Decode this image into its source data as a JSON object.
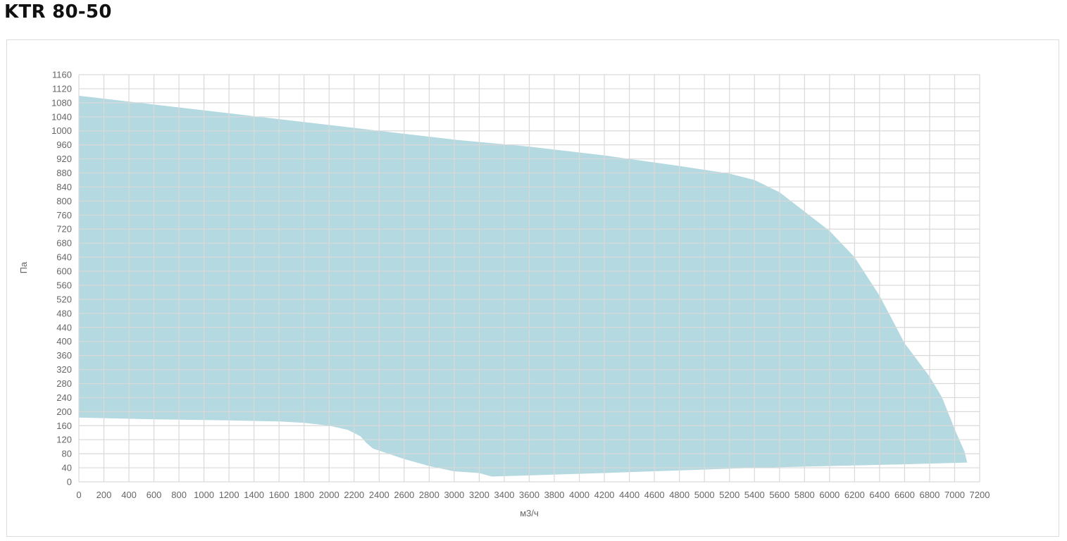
{
  "page_title": "KTR 80-50",
  "colors": {
    "area": "#b4d9e0",
    "grid": "#d9d9d9",
    "text": "#666666"
  },
  "chart_data": {
    "type": "area",
    "title": "KTR 80-50",
    "xlabel": "м3/ч",
    "ylabel": "Па",
    "xlim": [
      0,
      7200
    ],
    "ylim": [
      0,
      1160
    ],
    "x_ticks": [
      0,
      200,
      400,
      600,
      800,
      1000,
      1200,
      1400,
      1600,
      1800,
      2000,
      2200,
      2400,
      2600,
      2800,
      3000,
      3200,
      3400,
      3600,
      3800,
      4000,
      4200,
      4400,
      4600,
      4800,
      5000,
      5200,
      5400,
      5600,
      5800,
      6000,
      6200,
      6400,
      6600,
      6800,
      7000,
      7200
    ],
    "y_ticks": [
      0,
      40,
      80,
      120,
      160,
      200,
      240,
      280,
      320,
      360,
      400,
      440,
      480,
      520,
      560,
      600,
      640,
      680,
      720,
      760,
      800,
      840,
      880,
      920,
      960,
      1000,
      1040,
      1080,
      1120,
      1160
    ],
    "grid": true,
    "upper_boundary": [
      [
        0,
        1100
      ],
      [
        600,
        1075
      ],
      [
        1200,
        1050
      ],
      [
        1800,
        1025
      ],
      [
        2400,
        1000
      ],
      [
        3000,
        975
      ],
      [
        3600,
        955
      ],
      [
        4200,
        930
      ],
      [
        4800,
        900
      ],
      [
        5200,
        878
      ],
      [
        5400,
        860
      ],
      [
        5600,
        825
      ],
      [
        5800,
        770
      ],
      [
        6000,
        715
      ],
      [
        6200,
        640
      ],
      [
        6400,
        530
      ],
      [
        6600,
        395
      ],
      [
        6800,
        300
      ],
      [
        6900,
        240
      ],
      [
        7000,
        150
      ],
      [
        7080,
        85
      ],
      [
        7100,
        55
      ]
    ],
    "lower_boundary": [
      [
        0,
        183
      ],
      [
        600,
        178
      ],
      [
        1200,
        175
      ],
      [
        1600,
        172
      ],
      [
        1800,
        168
      ],
      [
        2000,
        160
      ],
      [
        2150,
        148
      ],
      [
        2250,
        130
      ],
      [
        2300,
        110
      ],
      [
        2350,
        95
      ],
      [
        2600,
        65
      ],
      [
        2800,
        45
      ],
      [
        3000,
        30
      ],
      [
        3200,
        25
      ],
      [
        3300,
        15
      ],
      [
        4200,
        25
      ],
      [
        5400,
        40
      ],
      [
        6600,
        50
      ],
      [
        7100,
        55
      ]
    ]
  }
}
